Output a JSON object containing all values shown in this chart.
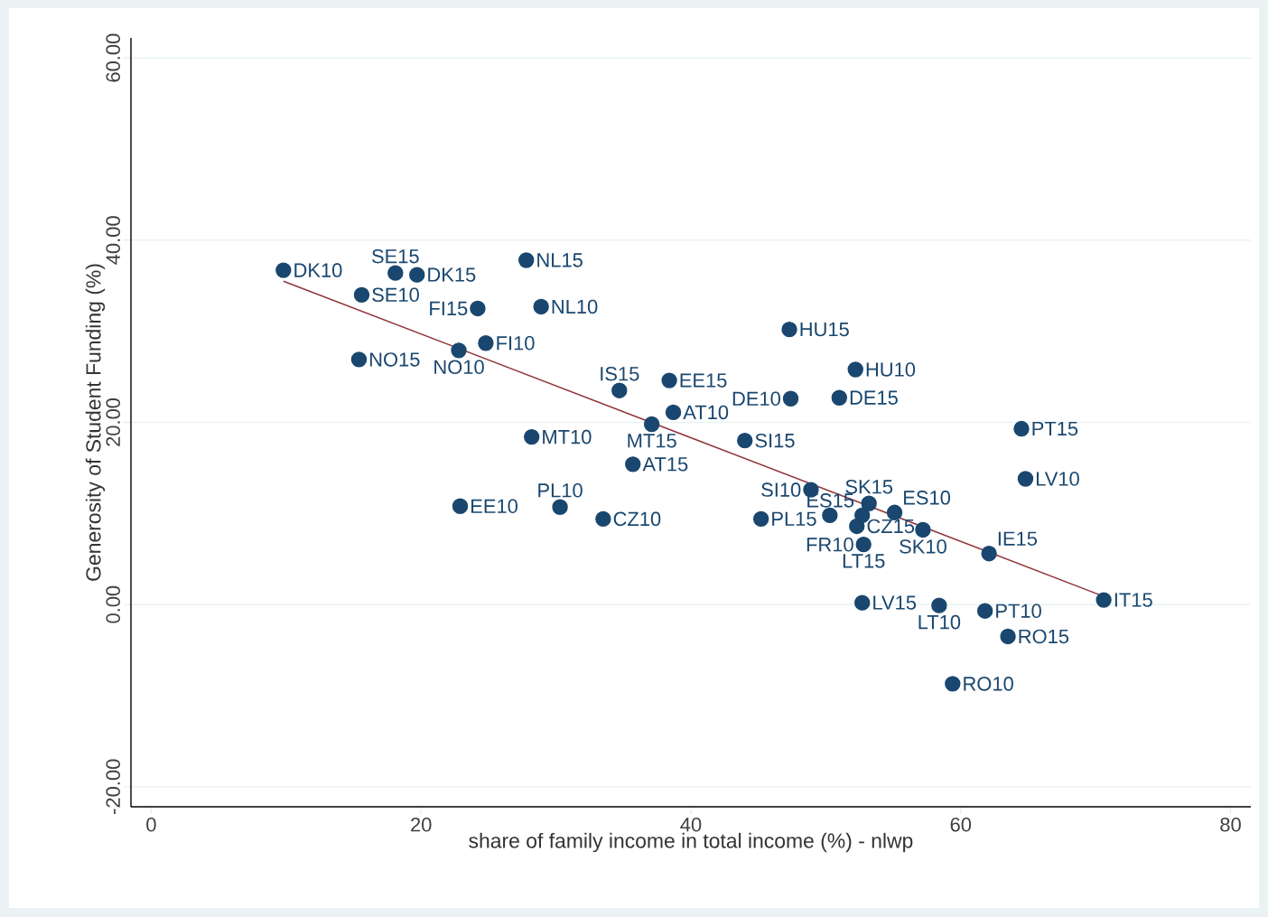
{
  "chart_data": {
    "type": "scatter",
    "xlabel": "share of family income in total income (%) - nlwp",
    "ylabel": "Generosity of Student Funding (%)",
    "xlim": [
      -1.5,
      81.5
    ],
    "ylim": [
      -22.2,
      62.2
    ],
    "xticks": [
      0,
      20,
      40,
      60,
      80
    ],
    "yticks": [
      {
        "value": -20,
        "label": "-20.00"
      },
      {
        "value": 0,
        "label": "0.00"
      },
      {
        "value": 20,
        "label": "20.00"
      },
      {
        "value": 40,
        "label": "40.00"
      },
      {
        "value": 60,
        "label": "60.00"
      }
    ],
    "grid": "y",
    "series": [
      {
        "type": "scatter",
        "marker": "circle",
        "color": "#1a476f",
        "x": [
          9.8,
          18.1,
          19.7,
          15.6,
          27.8,
          24.2,
          28.9,
          24.8,
          22.8,
          15.4,
          47.3,
          52.2,
          38.4,
          34.7,
          38.7,
          47.4,
          51.0,
          37.1,
          64.5,
          28.2,
          44.0,
          35.7,
          64.8,
          48.9,
          53.2,
          22.9,
          30.3,
          33.5,
          45.2,
          50.3,
          52.3,
          52.7,
          55.1,
          57.2,
          52.8,
          62.1,
          70.6,
          52.7,
          58.4,
          61.8,
          63.5,
          59.4
        ],
        "values": [
          36.7,
          36.4,
          36.2,
          34.0,
          37.8,
          32.5,
          32.7,
          28.7,
          27.9,
          26.9,
          30.2,
          25.8,
          24.6,
          23.5,
          21.1,
          22.6,
          22.7,
          19.8,
          19.3,
          18.4,
          18.0,
          15.4,
          13.8,
          12.6,
          11.1,
          10.8,
          10.7,
          9.4,
          9.4,
          9.8,
          8.6,
          9.8,
          10.1,
          8.2,
          6.6,
          5.6,
          0.5,
          0.2,
          -0.1,
          -0.7,
          -3.5,
          -8.7
        ]
      },
      {
        "type": "line",
        "color": "#90353b",
        "x": [
          9.8,
          70.6
        ],
        "values": [
          35.5,
          0.9
        ]
      }
    ],
    "annotations": [
      {
        "text": "DK10",
        "x": 9.8,
        "y": 36.7
      },
      {
        "text": "SE15",
        "x": 18.1,
        "y": 36.4
      },
      {
        "text": "DK15",
        "x": 19.7,
        "y": 36.2
      },
      {
        "text": "SE10",
        "x": 15.6,
        "y": 34.0
      },
      {
        "text": "NL15",
        "x": 27.8,
        "y": 37.8
      },
      {
        "text": "FI15",
        "x": 24.2,
        "y": 32.5
      },
      {
        "text": "NL10",
        "x": 28.9,
        "y": 32.7
      },
      {
        "text": "FI10",
        "x": 24.8,
        "y": 28.7
      },
      {
        "text": "NO10",
        "x": 22.8,
        "y": 27.9
      },
      {
        "text": "NO15",
        "x": 15.4,
        "y": 26.9
      },
      {
        "text": "HU15",
        "x": 47.3,
        "y": 30.2
      },
      {
        "text": "HU10",
        "x": 52.2,
        "y": 25.8
      },
      {
        "text": "EE15",
        "x": 38.4,
        "y": 24.6
      },
      {
        "text": "IS15",
        "x": 34.7,
        "y": 23.5
      },
      {
        "text": "AT10",
        "x": 38.7,
        "y": 21.1
      },
      {
        "text": "DE10",
        "x": 47.4,
        "y": 22.6
      },
      {
        "text": "DE15",
        "x": 51.0,
        "y": 22.7
      },
      {
        "text": "MT15",
        "x": 37.1,
        "y": 19.8
      },
      {
        "text": "PT15",
        "x": 64.5,
        "y": 19.3
      },
      {
        "text": "MT10",
        "x": 28.2,
        "y": 18.4
      },
      {
        "text": "SI15",
        "x": 44.0,
        "y": 18.0
      },
      {
        "text": "AT15",
        "x": 35.7,
        "y": 15.4
      },
      {
        "text": "LV10",
        "x": 64.8,
        "y": 13.8
      },
      {
        "text": "SI10",
        "x": 48.9,
        "y": 12.6
      },
      {
        "text": "SK15",
        "x": 53.2,
        "y": 11.1
      },
      {
        "text": "EE10",
        "x": 22.9,
        "y": 10.8
      },
      {
        "text": "PL10",
        "x": 30.3,
        "y": 10.7
      },
      {
        "text": "CZ10",
        "x": 33.5,
        "y": 9.4
      },
      {
        "text": "PL15",
        "x": 45.2,
        "y": 9.4
      },
      {
        "text": "FR10",
        "x": 50.3,
        "y": 9.8
      },
      {
        "text": "CZ15",
        "x": 52.3,
        "y": 8.6
      },
      {
        "text": "ES15",
        "x": 52.7,
        "y": 9.8
      },
      {
        "text": "ES10",
        "x": 55.1,
        "y": 10.1
      },
      {
        "text": "SK10",
        "x": 57.2,
        "y": 8.2
      },
      {
        "text": "LT15",
        "x": 52.8,
        "y": 6.6
      },
      {
        "text": "IE15",
        "x": 62.1,
        "y": 5.6
      },
      {
        "text": "IT15",
        "x": 70.6,
        "y": 0.5
      },
      {
        "text": "LV15",
        "x": 52.7,
        "y": 0.2
      },
      {
        "text": "LT10",
        "x": 58.4,
        "y": -0.1
      },
      {
        "text": "PT10",
        "x": 61.8,
        "y": -0.7
      },
      {
        "text": "RO15",
        "x": 63.5,
        "y": -3.5
      },
      {
        "text": "RO10",
        "x": 59.4,
        "y": -8.7
      }
    ]
  }
}
